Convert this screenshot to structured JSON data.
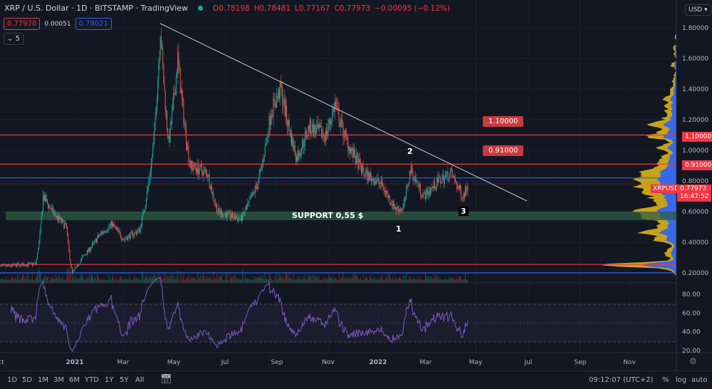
{
  "header": {
    "title": "XRP / U.S. Dollar · 1D · BITSTAMP · TradingView",
    "open": "O0.78198",
    "high": "H0.78481",
    "low": "L0.77167",
    "close": "C0.77973",
    "change": "−0.00095 (−0.12%)",
    "bid": "0.77970",
    "spread": "0.00051",
    "ask": "0.78021",
    "indicator_toggle": "5"
  },
  "currency": "USD",
  "symbol_label": "XRPUSD",
  "last_price": "0.77973",
  "countdown": "16:47:52",
  "annotations": {
    "support": "SUPPORT 0,55 $",
    "p1": "1",
    "p2": "2",
    "p3": "3",
    "level1": "1.10000",
    "level2": "0.91000"
  },
  "bottom": {
    "ranges": [
      "1D",
      "5D",
      "1M",
      "3M",
      "6M",
      "YTD",
      "1Y",
      "5Y",
      "All"
    ],
    "time": "09:12:07 (UTC+2)",
    "pct": "%",
    "log": "log",
    "auto": "auto"
  },
  "colors": {
    "up": "#26a69a",
    "down": "#ef5350",
    "bg": "#131722",
    "resistance": "#f23645",
    "blue_level": "#2962ff",
    "rsi": "#7e57c2",
    "profile_up": "#f5c518",
    "profile_down": "#2962ff"
  },
  "chart_data": {
    "type": "candlestick",
    "symbol": "XRPUSD",
    "interval": "1D",
    "scale": "linear",
    "ylim": [
      0.15,
      1.9
    ],
    "y_ticks": [
      "1.80000",
      "1.60000",
      "1.40000",
      "1.20000",
      "1.00000",
      "0.80000",
      "0.60000",
      "0.40000",
      "0.20000"
    ],
    "x_ticks": [
      "Oct",
      "2021",
      "Mar",
      "May",
      "Jul",
      "Sep",
      "Nov",
      "2022",
      "Mar",
      "May",
      "Jul",
      "Sep",
      "Nov"
    ],
    "price_path": [
      [
        "2020-10-01",
        0.24
      ],
      [
        "2020-11-15",
        0.26
      ],
      [
        "2020-11-24",
        0.7
      ],
      [
        "2020-12-05",
        0.6
      ],
      [
        "2020-12-22",
        0.5
      ],
      [
        "2020-12-29",
        0.2
      ],
      [
        "2021-01-10",
        0.3
      ],
      [
        "2021-01-31",
        0.45
      ],
      [
        "2021-02-15",
        0.52
      ],
      [
        "2021-03-01",
        0.42
      ],
      [
        "2021-03-20",
        0.48
      ],
      [
        "2021-04-05",
        1.0
      ],
      [
        "2021-04-14",
        1.8
      ],
      [
        "2021-04-24",
        1.05
      ],
      [
        "2021-05-05",
        1.6
      ],
      [
        "2021-05-20",
        0.9
      ],
      [
        "2021-06-10",
        0.85
      ],
      [
        "2021-06-22",
        0.6
      ],
      [
        "2021-07-20",
        0.55
      ],
      [
        "2021-08-10",
        0.8
      ],
      [
        "2021-08-25",
        1.25
      ],
      [
        "2021-09-06",
        1.4
      ],
      [
        "2021-09-25",
        0.95
      ],
      [
        "2021-10-10",
        1.15
      ],
      [
        "2021-10-30",
        1.1
      ],
      [
        "2021-11-10",
        1.3
      ],
      [
        "2021-11-25",
        1.05
      ],
      [
        "2021-12-15",
        0.85
      ],
      [
        "2022-01-05",
        0.78
      ],
      [
        "2022-01-22",
        0.62
      ],
      [
        "2022-01-31",
        0.62
      ],
      [
        "2022-02-09",
        0.88
      ],
      [
        "2022-02-25",
        0.7
      ],
      [
        "2022-03-15",
        0.8
      ],
      [
        "2022-03-30",
        0.85
      ],
      [
        "2022-04-13",
        0.7
      ],
      [
        "2022-04-19",
        0.78
      ]
    ],
    "horizontal_levels": [
      1.1,
      0.91,
      0.82,
      0.255,
      0.2
    ],
    "support_zone": [
      0.55,
      0.6
    ],
    "trendline": [
      [
        "2021-04-14",
        1.82
      ],
      [
        "2022-07-01",
        0.68
      ]
    ],
    "rsi": {
      "period": 14,
      "ticks": [
        "80.00",
        "60.00",
        "40.00",
        "20.00"
      ],
      "bands": [
        70,
        30
      ]
    }
  }
}
